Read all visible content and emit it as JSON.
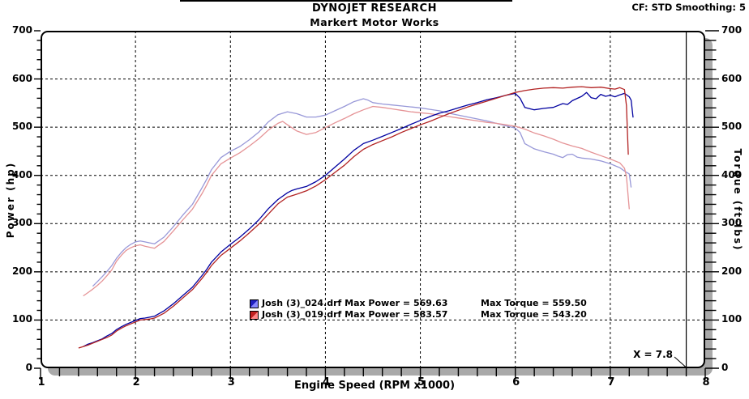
{
  "header": {
    "title": "DYNOJET RESEARCH",
    "subtitle": "Markert Motor Works",
    "cf_text": "CF: STD  Smoothing: 5"
  },
  "chart_data": {
    "type": "line",
    "title": "DYNOJET RESEARCH",
    "subtitle": "Markert Motor Works",
    "xlabel": "Engine Speed (RPM x1000)",
    "ylabel_left": "Power (hp)",
    "ylabel_right": "Torque (ft-lbs)",
    "xlim": [
      1,
      8
    ],
    "ylim": [
      0,
      700
    ],
    "x_major_ticks": [
      1,
      2,
      3,
      4,
      5,
      6,
      7,
      8
    ],
    "y_major_ticks": [
      0,
      100,
      200,
      300,
      400,
      500,
      600,
      700
    ],
    "x_minor_step": 0.2,
    "y_minor_step": 20,
    "grid_style": "dashed",
    "legend_position": "inside-bottom-center",
    "cursor_x": 7.8,
    "cursor_label": "X = 7.8",
    "legend": [
      {
        "file": "Josh (3)_024.drf",
        "max_power": "569.63",
        "max_torque": "559.50",
        "power_text": "Josh (3)_024.drf Max Power = 569.63",
        "torque_text": "Max Torque = 559.50",
        "swatch_dark": "#2020c0",
        "swatch_light": "#8888ff"
      },
      {
        "file": "Josh (3)_019.drf",
        "max_power": "583.57",
        "max_torque": "543.20",
        "power_text": "Josh (3)_019.drf Max Power = 583.57",
        "torque_text": "Max Torque = 543.20",
        "swatch_dark": "#c02020",
        "swatch_light": "#ff8888"
      }
    ],
    "series": [
      {
        "name": "Josh (3)_024.drf Torque",
        "unit": "ft-lbs",
        "color": "#9898d8",
        "points": [
          [
            1.55,
            170
          ],
          [
            1.6,
            180
          ],
          [
            1.65,
            190
          ],
          [
            1.7,
            201
          ],
          [
            1.75,
            213
          ],
          [
            1.8,
            228
          ],
          [
            1.85,
            240
          ],
          [
            1.9,
            250
          ],
          [
            1.95,
            257
          ],
          [
            2.0,
            262
          ],
          [
            2.05,
            264
          ],
          [
            2.1,
            262
          ],
          [
            2.15,
            260
          ],
          [
            2.2,
            258
          ],
          [
            2.3,
            272
          ],
          [
            2.4,
            294
          ],
          [
            2.5,
            318
          ],
          [
            2.6,
            340
          ],
          [
            2.7,
            374
          ],
          [
            2.75,
            392
          ],
          [
            2.8,
            412
          ],
          [
            2.9,
            437
          ],
          [
            3.0,
            450
          ],
          [
            3.1,
            460
          ],
          [
            3.2,
            474
          ],
          [
            3.3,
            490
          ],
          [
            3.4,
            511
          ],
          [
            3.5,
            526
          ],
          [
            3.6,
            532
          ],
          [
            3.7,
            528
          ],
          [
            3.8,
            521
          ],
          [
            3.9,
            521
          ],
          [
            4.0,
            525
          ],
          [
            4.1,
            534
          ],
          [
            4.2,
            543
          ],
          [
            4.3,
            553
          ],
          [
            4.4,
            559
          ],
          [
            4.45,
            556
          ],
          [
            4.5,
            551
          ],
          [
            4.6,
            548
          ],
          [
            4.7,
            546
          ],
          [
            4.8,
            544
          ],
          [
            4.9,
            542
          ],
          [
            5.0,
            540
          ],
          [
            5.1,
            537
          ],
          [
            5.2,
            534
          ],
          [
            5.3,
            529
          ],
          [
            5.4,
            525
          ],
          [
            5.5,
            521
          ],
          [
            5.6,
            517
          ],
          [
            5.7,
            513
          ],
          [
            5.8,
            508
          ],
          [
            5.9,
            503
          ],
          [
            6.0,
            498
          ],
          [
            6.05,
            489
          ],
          [
            6.1,
            466
          ],
          [
            6.2,
            455
          ],
          [
            6.3,
            449
          ],
          [
            6.4,
            444
          ],
          [
            6.45,
            440
          ],
          [
            6.5,
            437
          ],
          [
            6.55,
            443
          ],
          [
            6.6,
            444
          ],
          [
            6.65,
            438
          ],
          [
            6.7,
            436
          ],
          [
            6.8,
            434
          ],
          [
            6.9,
            430
          ],
          [
            7.0,
            424
          ],
          [
            7.1,
            416
          ],
          [
            7.15,
            409
          ],
          [
            7.2,
            403
          ],
          [
            7.22,
            375
          ]
        ]
      },
      {
        "name": "Josh (3)_019.drf Torque",
        "unit": "ft-lbs",
        "color": "#e59396",
        "points": [
          [
            1.45,
            150
          ],
          [
            1.5,
            157
          ],
          [
            1.55,
            164
          ],
          [
            1.6,
            172
          ],
          [
            1.65,
            181
          ],
          [
            1.7,
            192
          ],
          [
            1.75,
            204
          ],
          [
            1.8,
            222
          ],
          [
            1.85,
            234
          ],
          [
            1.9,
            244
          ],
          [
            1.95,
            250
          ],
          [
            2.0,
            254
          ],
          [
            2.05,
            256
          ],
          [
            2.1,
            253
          ],
          [
            2.15,
            251
          ],
          [
            2.2,
            249
          ],
          [
            2.3,
            263
          ],
          [
            2.4,
            285
          ],
          [
            2.5,
            308
          ],
          [
            2.6,
            330
          ],
          [
            2.7,
            362
          ],
          [
            2.75,
            380
          ],
          [
            2.8,
            400
          ],
          [
            2.9,
            424
          ],
          [
            3.0,
            436
          ],
          [
            3.1,
            447
          ],
          [
            3.2,
            461
          ],
          [
            3.3,
            476
          ],
          [
            3.4,
            494
          ],
          [
            3.5,
            508
          ],
          [
            3.55,
            512
          ],
          [
            3.6,
            505
          ],
          [
            3.7,
            492
          ],
          [
            3.8,
            485
          ],
          [
            3.9,
            489
          ],
          [
            4.0,
            499
          ],
          [
            4.1,
            509
          ],
          [
            4.2,
            518
          ],
          [
            4.3,
            528
          ],
          [
            4.4,
            536
          ],
          [
            4.5,
            543
          ],
          [
            4.6,
            541
          ],
          [
            4.7,
            538
          ],
          [
            4.8,
            535
          ],
          [
            4.9,
            532
          ],
          [
            5.0,
            530
          ],
          [
            5.1,
            528
          ],
          [
            5.2,
            525
          ],
          [
            5.3,
            522
          ],
          [
            5.4,
            519
          ],
          [
            5.5,
            516
          ],
          [
            5.6,
            513
          ],
          [
            5.7,
            510
          ],
          [
            5.8,
            508
          ],
          [
            5.9,
            505
          ],
          [
            6.0,
            502
          ],
          [
            6.1,
            496
          ],
          [
            6.2,
            488
          ],
          [
            6.3,
            482
          ],
          [
            6.4,
            475
          ],
          [
            6.5,
            467
          ],
          [
            6.6,
            461
          ],
          [
            6.7,
            456
          ],
          [
            6.8,
            448
          ],
          [
            6.9,
            441
          ],
          [
            7.0,
            434
          ],
          [
            7.1,
            426
          ],
          [
            7.15,
            415
          ],
          [
            7.17,
            398
          ],
          [
            7.2,
            330
          ]
        ]
      },
      {
        "name": "Josh (3)_024.drf Power",
        "unit": "hp",
        "color": "#0000a0",
        "points": [
          [
            1.45,
            45
          ],
          [
            1.5,
            50
          ],
          [
            1.55,
            53
          ],
          [
            1.6,
            57
          ],
          [
            1.65,
            61
          ],
          [
            1.7,
            67
          ],
          [
            1.75,
            72
          ],
          [
            1.8,
            80
          ],
          [
            1.85,
            86
          ],
          [
            1.9,
            91
          ],
          [
            1.95,
            95
          ],
          [
            2.0,
            99
          ],
          [
            2.05,
            103
          ],
          [
            2.1,
            104
          ],
          [
            2.15,
            106
          ],
          [
            2.2,
            108
          ],
          [
            2.3,
            119
          ],
          [
            2.4,
            134
          ],
          [
            2.5,
            151
          ],
          [
            2.6,
            168
          ],
          [
            2.7,
            192
          ],
          [
            2.75,
            205
          ],
          [
            2.8,
            220
          ],
          [
            2.9,
            241
          ],
          [
            3.0,
            257
          ],
          [
            3.1,
            272
          ],
          [
            3.2,
            289
          ],
          [
            3.3,
            308
          ],
          [
            3.4,
            331
          ],
          [
            3.5,
            350
          ],
          [
            3.6,
            364
          ],
          [
            3.65,
            369
          ],
          [
            3.7,
            372
          ],
          [
            3.8,
            377
          ],
          [
            3.9,
            387
          ],
          [
            4.0,
            400
          ],
          [
            4.1,
            417
          ],
          [
            4.2,
            434
          ],
          [
            4.3,
            452
          ],
          [
            4.35,
            459
          ],
          [
            4.4,
            466
          ],
          [
            4.5,
            473
          ],
          [
            4.6,
            481
          ],
          [
            4.7,
            489
          ],
          [
            4.8,
            497
          ],
          [
            4.9,
            506
          ],
          [
            5.0,
            514
          ],
          [
            5.1,
            522
          ],
          [
            5.2,
            529
          ],
          [
            5.3,
            534
          ],
          [
            5.4,
            540
          ],
          [
            5.5,
            546
          ],
          [
            5.6,
            551
          ],
          [
            5.7,
            557
          ],
          [
            5.8,
            561
          ],
          [
            5.9,
            566
          ],
          [
            6.0,
            570
          ],
          [
            6.05,
            560
          ],
          [
            6.1,
            541
          ],
          [
            6.2,
            536
          ],
          [
            6.3,
            539
          ],
          [
            6.4,
            541
          ],
          [
            6.5,
            549
          ],
          [
            6.55,
            547
          ],
          [
            6.6,
            555
          ],
          [
            6.7,
            564
          ],
          [
            6.75,
            572
          ],
          [
            6.8,
            561
          ],
          [
            6.85,
            559
          ],
          [
            6.9,
            568
          ],
          [
            6.95,
            564
          ],
          [
            7.0,
            566
          ],
          [
            7.05,
            563
          ],
          [
            7.1,
            567
          ],
          [
            7.15,
            570
          ],
          [
            7.2,
            563
          ],
          [
            7.22,
            556
          ],
          [
            7.24,
            520
          ]
        ]
      },
      {
        "name": "Josh (3)_019.drf Power",
        "unit": "hp",
        "color": "#b22222",
        "points": [
          [
            1.4,
            42
          ],
          [
            1.45,
            45
          ],
          [
            1.5,
            48
          ],
          [
            1.55,
            52
          ],
          [
            1.6,
            56
          ],
          [
            1.65,
            60
          ],
          [
            1.7,
            64
          ],
          [
            1.75,
            69
          ],
          [
            1.8,
            77
          ],
          [
            1.85,
            83
          ],
          [
            1.9,
            88
          ],
          [
            1.95,
            92
          ],
          [
            2.0,
            96
          ],
          [
            2.05,
            100
          ],
          [
            2.1,
            101
          ],
          [
            2.15,
            102
          ],
          [
            2.2,
            104
          ],
          [
            2.3,
            114
          ],
          [
            2.4,
            129
          ],
          [
            2.5,
            146
          ],
          [
            2.6,
            163
          ],
          [
            2.7,
            186
          ],
          [
            2.75,
            199
          ],
          [
            2.8,
            213
          ],
          [
            2.9,
            234
          ],
          [
            3.0,
            249
          ],
          [
            3.1,
            264
          ],
          [
            3.2,
            281
          ],
          [
            3.3,
            299
          ],
          [
            3.4,
            320
          ],
          [
            3.5,
            341
          ],
          [
            3.6,
            355
          ],
          [
            3.65,
            358
          ],
          [
            3.7,
            361
          ],
          [
            3.8,
            368
          ],
          [
            3.9,
            378
          ],
          [
            4.0,
            391
          ],
          [
            4.1,
            406
          ],
          [
            4.2,
            421
          ],
          [
            4.3,
            439
          ],
          [
            4.4,
            454
          ],
          [
            4.5,
            464
          ],
          [
            4.6,
            472
          ],
          [
            4.7,
            480
          ],
          [
            4.8,
            489
          ],
          [
            4.9,
            497
          ],
          [
            5.0,
            505
          ],
          [
            5.1,
            512
          ],
          [
            5.2,
            520
          ],
          [
            5.3,
            528
          ],
          [
            5.4,
            535
          ],
          [
            5.5,
            542
          ],
          [
            5.6,
            548
          ],
          [
            5.7,
            554
          ],
          [
            5.8,
            560
          ],
          [
            5.9,
            566
          ],
          [
            6.0,
            572
          ],
          [
            6.1,
            576
          ],
          [
            6.2,
            579
          ],
          [
            6.3,
            581
          ],
          [
            6.4,
            582
          ],
          [
            6.5,
            581
          ],
          [
            6.6,
            583
          ],
          [
            6.7,
            584
          ],
          [
            6.8,
            582
          ],
          [
            6.9,
            583
          ],
          [
            7.0,
            580
          ],
          [
            7.05,
            579
          ],
          [
            7.1,
            582
          ],
          [
            7.15,
            578
          ],
          [
            7.17,
            545
          ],
          [
            7.19,
            443
          ]
        ]
      }
    ]
  }
}
